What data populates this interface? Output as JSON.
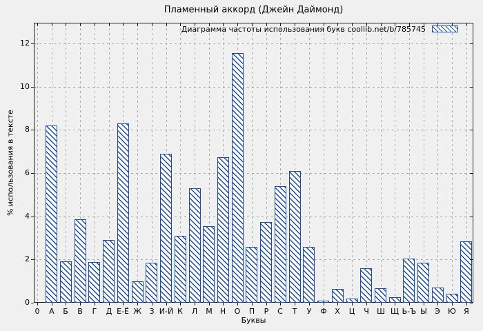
{
  "chart_data": {
    "type": "bar",
    "title": "Пламенный аккорд (Джейн Даймонд)",
    "legend": "Диаграмма частоты использования букв coollib.net/b/785745",
    "xlabel": "Буквы",
    "ylabel": "% использования в тексте",
    "categories": [
      "0",
      "А",
      "Б",
      "В",
      "Г",
      "Д",
      "Е-Ё",
      "Ж",
      "З",
      "И-Й",
      "К",
      "Л",
      "М",
      "Н",
      "О",
      "П",
      "Р",
      "С",
      "Т",
      "У",
      "Ф",
      "Х",
      "Ц",
      "Ч",
      "Ш",
      "Щ",
      "Ь-Ъ",
      "Ы",
      "Э",
      "Ю",
      "Я"
    ],
    "values": [
      0,
      8.2,
      1.9,
      3.85,
      1.88,
      2.9,
      8.3,
      1.0,
      1.86,
      6.9,
      3.1,
      5.3,
      3.55,
      6.75,
      11.55,
      2.6,
      3.72,
      5.4,
      6.1,
      2.6,
      0.1,
      0.65,
      0.2,
      1.6,
      0.66,
      0.25,
      2.05,
      1.86,
      0.7,
      0.4,
      2.85
    ],
    "yticks": [
      0,
      2,
      4,
      6,
      8,
      10,
      12
    ],
    "ylim": [
      0,
      12.96
    ],
    "grid": true,
    "legend_position": "top-right",
    "colors": {
      "bar": "#1c4ba3",
      "grid": "#a9a9a9",
      "axis": "#1a1a1a",
      "background": "#f0f0f0",
      "bar_fill": "#ffffff"
    }
  }
}
